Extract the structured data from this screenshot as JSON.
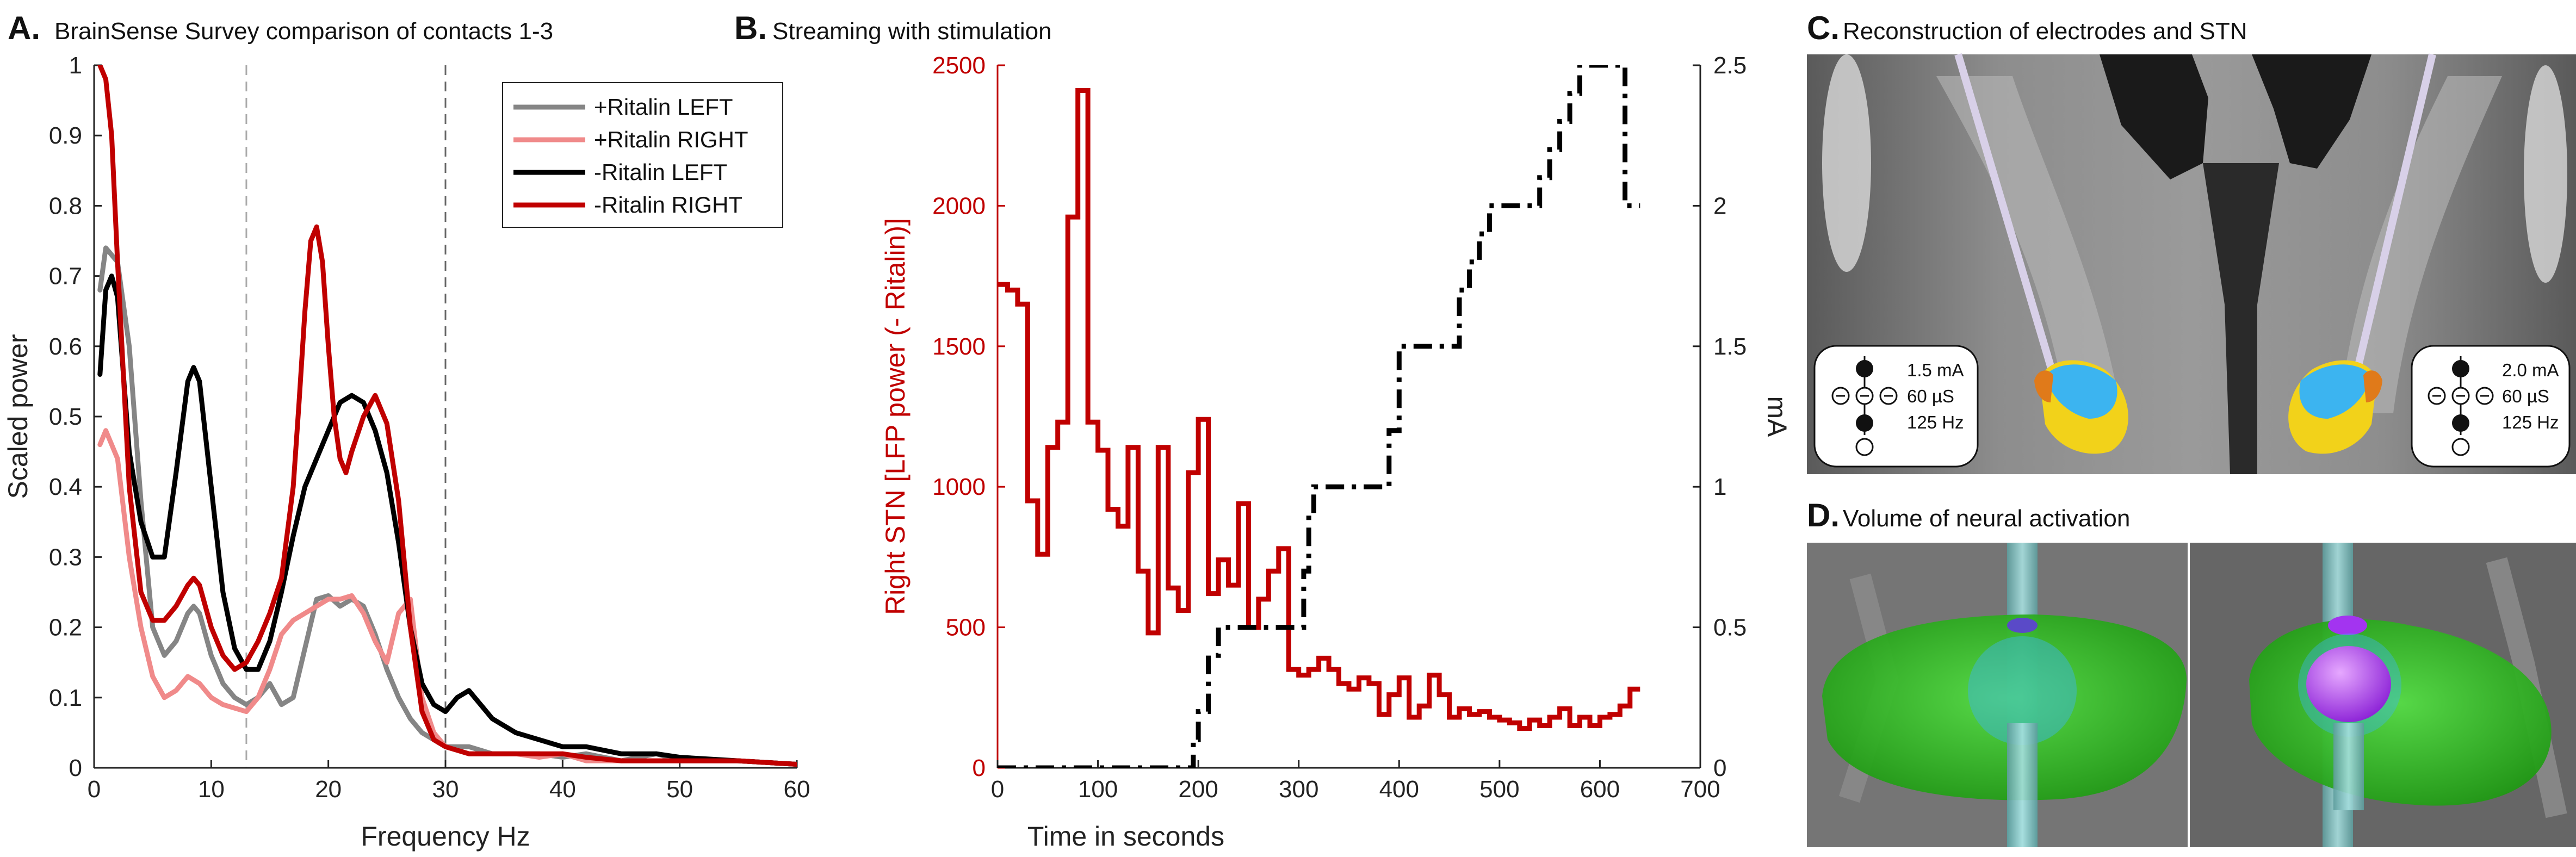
{
  "panels": {
    "a": {
      "letter": "A.",
      "title": "BrainSense Survey comparison of contacts 1-3"
    },
    "b": {
      "letter": "B.",
      "title": "Streaming with stimulation"
    },
    "c": {
      "letter": "C.",
      "title": "Reconstruction of electrodes and STN",
      "left_settings": [
        "1.5 mA",
        "60 µS",
        "125 Hz"
      ],
      "right_settings": [
        "2.0 mA",
        "60 µS",
        "125 Hz"
      ]
    },
    "d": {
      "letter": "D.",
      "title": "Volume of neural activation"
    }
  },
  "colors": {
    "grey": "#858585",
    "pink": "#f08a8a",
    "black": "#000000",
    "red": "#c00000",
    "stn_green": "#2bc41c",
    "stn_blue": "#3cb4f0",
    "vta_purple": "#a334f0"
  },
  "chart_data": [
    {
      "type": "line",
      "title": "BrainSense Survey comparison of contacts 1-3",
      "xlabel": "Frequency Hz",
      "ylabel": "Scaled power",
      "xlim": [
        0,
        60
      ],
      "ylim": [
        0,
        1
      ],
      "xticks": [
        0,
        10,
        20,
        30,
        40,
        50,
        60
      ],
      "yticks": [
        0,
        0.1,
        0.2,
        0.3,
        0.4,
        0.5,
        0.6,
        0.7,
        0.8,
        0.9,
        1
      ],
      "vlines": [
        13,
        30
      ],
      "legend": "top-right",
      "series": [
        {
          "name": "+Ritalin LEFT",
          "color": "#858585",
          "x": [
            0.5,
            1,
            2,
            3,
            4,
            5,
            6,
            7,
            8,
            8.5,
            9,
            10,
            11,
            12,
            13,
            14,
            15,
            16,
            17,
            18,
            19,
            20,
            21,
            22,
            23,
            24,
            25,
            26,
            27,
            28,
            29,
            30,
            32,
            34,
            36,
            38,
            40,
            42,
            45,
            48,
            50,
            55,
            60
          ],
          "y": [
            0.68,
            0.74,
            0.72,
            0.6,
            0.38,
            0.2,
            0.16,
            0.18,
            0.22,
            0.23,
            0.22,
            0.16,
            0.12,
            0.1,
            0.09,
            0.1,
            0.12,
            0.09,
            0.1,
            0.17,
            0.24,
            0.245,
            0.23,
            0.24,
            0.23,
            0.19,
            0.14,
            0.1,
            0.07,
            0.05,
            0.04,
            0.03,
            0.03,
            0.02,
            0.02,
            0.02,
            0.015,
            0.02,
            0.01,
            0.02,
            0.01,
            0.01,
            0.005
          ]
        },
        {
          "name": "+Ritalin RIGHT",
          "color": "#f08a8a",
          "x": [
            0.5,
            1,
            2,
            3,
            4,
            5,
            6,
            7,
            8,
            9,
            10,
            11,
            12,
            13,
            14,
            15,
            16,
            17,
            18,
            19,
            20,
            21,
            22,
            23,
            24,
            25,
            26,
            27,
            28,
            29,
            30,
            32,
            34,
            36,
            38,
            40,
            42,
            45,
            50,
            55,
            60
          ],
          "y": [
            0.46,
            0.48,
            0.44,
            0.3,
            0.2,
            0.13,
            0.1,
            0.11,
            0.13,
            0.12,
            0.1,
            0.09,
            0.085,
            0.08,
            0.1,
            0.14,
            0.19,
            0.21,
            0.22,
            0.23,
            0.24,
            0.24,
            0.245,
            0.22,
            0.18,
            0.15,
            0.22,
            0.24,
            0.1,
            0.05,
            0.03,
            0.02,
            0.02,
            0.02,
            0.015,
            0.02,
            0.01,
            0.01,
            0.01,
            0.01,
            0.005
          ]
        },
        {
          "name": "-Ritalin LEFT",
          "color": "#000000",
          "x": [
            0.5,
            1,
            1.5,
            2,
            3,
            4,
            5,
            6,
            7,
            8,
            8.5,
            9,
            10,
            11,
            12,
            13,
            14,
            15,
            16,
            17,
            18,
            19,
            20,
            21,
            22,
            23,
            24,
            25,
            26,
            27,
            28,
            29,
            30,
            31,
            32,
            33,
            34,
            36,
            38,
            40,
            42,
            45,
            48,
            50,
            55,
            60
          ],
          "y": [
            0.56,
            0.68,
            0.7,
            0.67,
            0.45,
            0.35,
            0.3,
            0.3,
            0.42,
            0.55,
            0.57,
            0.55,
            0.4,
            0.25,
            0.17,
            0.14,
            0.14,
            0.18,
            0.25,
            0.33,
            0.4,
            0.44,
            0.48,
            0.52,
            0.53,
            0.52,
            0.48,
            0.42,
            0.32,
            0.2,
            0.12,
            0.09,
            0.08,
            0.1,
            0.11,
            0.09,
            0.07,
            0.05,
            0.04,
            0.03,
            0.03,
            0.02,
            0.02,
            0.015,
            0.01,
            0.005
          ]
        },
        {
          "name": "-Ritalin RIGHT",
          "color": "#c00000",
          "x": [
            0.5,
            1,
            1.5,
            2,
            3,
            4,
            5,
            6,
            7,
            8,
            8.5,
            9,
            10,
            11,
            12,
            13,
            14,
            15,
            16,
            17,
            17.5,
            18,
            18.5,
            19,
            19.5,
            20,
            20.5,
            21,
            21.5,
            22,
            23,
            24,
            25,
            26,
            27,
            28,
            29,
            30,
            32,
            34,
            36,
            38,
            40,
            42,
            45,
            50,
            55,
            60
          ],
          "y": [
            1.0,
            0.98,
            0.9,
            0.72,
            0.4,
            0.25,
            0.21,
            0.21,
            0.23,
            0.26,
            0.27,
            0.26,
            0.2,
            0.16,
            0.14,
            0.15,
            0.18,
            0.22,
            0.27,
            0.4,
            0.52,
            0.65,
            0.75,
            0.77,
            0.72,
            0.6,
            0.5,
            0.44,
            0.42,
            0.45,
            0.5,
            0.53,
            0.49,
            0.38,
            0.2,
            0.08,
            0.04,
            0.03,
            0.02,
            0.02,
            0.02,
            0.02,
            0.02,
            0.015,
            0.01,
            0.01,
            0.01,
            0.005
          ]
        }
      ]
    },
    {
      "type": "line",
      "title": "Streaming with stimulation",
      "xlabel": "Time in seconds",
      "ylabel": "Right STN [LFP power (- Ritalin)]",
      "y2label": "mA",
      "xlim": [
        0,
        700
      ],
      "ylim": [
        0,
        2500
      ],
      "y2lim": [
        0,
        2.5
      ],
      "xticks": [
        0,
        100,
        200,
        300,
        400,
        500,
        600,
        700
      ],
      "yticks": [
        0,
        500,
        1000,
        1500,
        2000,
        2500
      ],
      "y2ticks": [
        0,
        0.5,
        1,
        1.5,
        2,
        2.5
      ],
      "series": [
        {
          "name": "",
          "color": "#c00000",
          "axis": "left",
          "style": "step",
          "x": [
            0,
            10,
            20,
            30,
            40,
            50,
            60,
            70,
            80,
            90,
            100,
            110,
            120,
            130,
            140,
            150,
            160,
            170,
            180,
            190,
            200,
            210,
            220,
            230,
            240,
            250,
            260,
            270,
            280,
            290,
            300,
            310,
            320,
            330,
            340,
            350,
            360,
            370,
            380,
            390,
            400,
            410,
            420,
            430,
            440,
            450,
            460,
            470,
            480,
            490,
            500,
            510,
            520,
            530,
            540,
            550,
            560,
            570,
            580,
            590,
            600,
            610,
            620,
            630,
            640
          ],
          "y": [
            1720,
            1700,
            1650,
            950,
            760,
            1140,
            1230,
            1960,
            2410,
            1230,
            1130,
            920,
            860,
            1140,
            700,
            480,
            1140,
            640,
            560,
            1050,
            1240,
            620,
            740,
            650,
            940,
            500,
            600,
            700,
            780,
            350,
            330,
            350,
            390,
            350,
            300,
            280,
            320,
            300,
            190,
            260,
            320,
            180,
            220,
            330,
            260,
            180,
            210,
            190,
            200,
            180,
            170,
            160,
            140,
            170,
            150,
            180,
            210,
            150,
            180,
            150,
            180,
            190,
            220,
            280,
            280
          ]
        },
        {
          "name": "",
          "color": "#000000",
          "axis": "right",
          "style": "step-dashdot",
          "x": [
            0,
            190,
            195,
            200,
            210,
            220,
            230,
            240,
            250,
            260,
            270,
            280,
            290,
            300,
            305,
            310,
            315,
            320,
            330,
            340,
            350,
            360,
            370,
            380,
            390,
            400,
            410,
            420,
            430,
            440,
            450,
            460,
            470,
            480,
            490,
            500,
            510,
            520,
            530,
            540,
            550,
            560,
            570,
            580,
            590,
            600,
            610,
            620,
            625,
            630,
            640
          ],
          "y": [
            0,
            0,
            0.1,
            0.2,
            0.4,
            0.5,
            0.5,
            0.5,
            0.5,
            0.5,
            0.5,
            0.5,
            0.5,
            0.5,
            0.7,
            0.9,
            1.0,
            1.0,
            1.0,
            1.0,
            1.0,
            1.0,
            1.0,
            1.0,
            1.2,
            1.5,
            1.5,
            1.5,
            1.5,
            1.5,
            1.5,
            1.7,
            1.8,
            1.9,
            2.0,
            2.0,
            2.0,
            2.0,
            2.0,
            2.1,
            2.2,
            2.3,
            2.4,
            2.5,
            2.5,
            2.5,
            2.5,
            2.5,
            2.0,
            2.0,
            2.0
          ]
        }
      ]
    }
  ]
}
